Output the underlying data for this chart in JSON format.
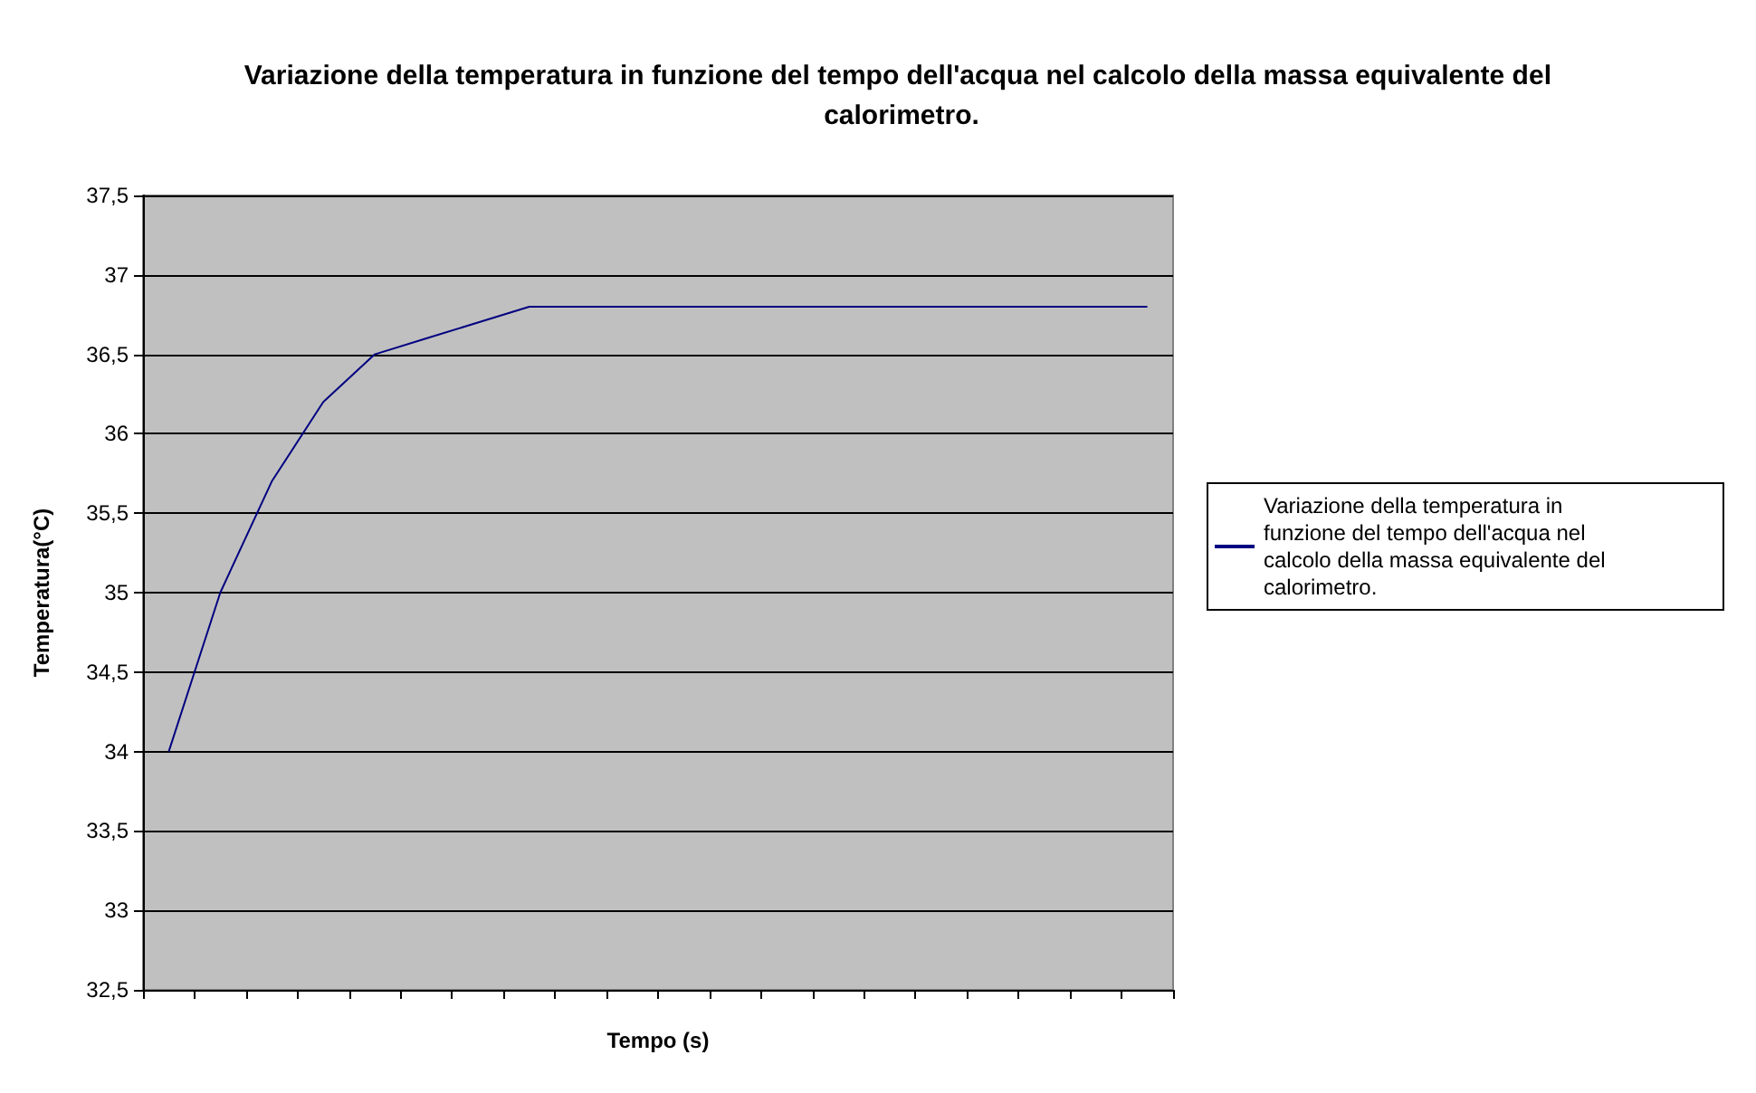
{
  "chart_data": {
    "type": "line",
    "title": "Variazione della temperatura in funzione del tempo dell'acqua nel calcolo della massa equivalente del calorimetro.",
    "xlabel": "Tempo (s)",
    "ylabel": "Temperatura(°C)",
    "categories": [
      null,
      null,
      null,
      null,
      null,
      null,
      null,
      null,
      null,
      null,
      null,
      null,
      null,
      null,
      null,
      null,
      null,
      null,
      null,
      null
    ],
    "series": [
      {
        "name": "Variazione della temperatura in funzione del tempo dell'acqua nel calcolo della massa equivalente del calorimetro.",
        "color": "#000080",
        "values": [
          34,
          35,
          35.7,
          36.2,
          36.5,
          36.6,
          36.7,
          36.8,
          36.8,
          36.8,
          36.8,
          36.8,
          36.8,
          36.8,
          36.8,
          36.8,
          36.8,
          36.8,
          36.8,
          36.8
        ]
      }
    ],
    "ylim": [
      32.5,
      37.5
    ],
    "yticks": [
      {
        "value": 32.5,
        "label": "32,5"
      },
      {
        "value": 33,
        "label": "33"
      },
      {
        "value": 33.5,
        "label": "33,5"
      },
      {
        "value": 34,
        "label": "34"
      },
      {
        "value": 34.5,
        "label": "34,5"
      },
      {
        "value": 35,
        "label": "35"
      },
      {
        "value": 35.5,
        "label": "35,5"
      },
      {
        "value": 36,
        "label": "36"
      },
      {
        "value": 36.5,
        "label": "36,5"
      },
      {
        "value": 37,
        "label": "37"
      },
      {
        "value": 37.5,
        "label": "37,5"
      }
    ],
    "grid": "y",
    "legend": "right",
    "marker": "none",
    "line_style": "solid"
  }
}
